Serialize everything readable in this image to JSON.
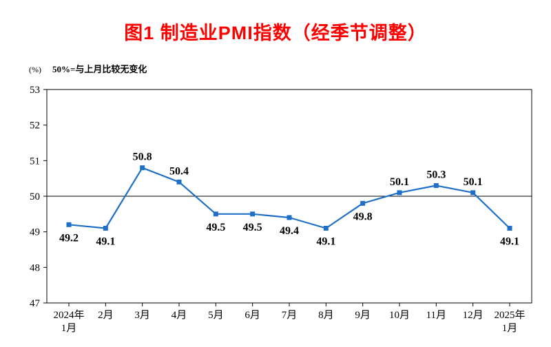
{
  "page": {
    "title": "图1  制造业PMI指数（经季节调整）",
    "unit_label": "(%)",
    "note": "50%=与上月比较无变化"
  },
  "colors": {
    "title": "#ff0000",
    "line": "#1e6fc8",
    "axis": "#000000"
  },
  "chart_data": {
    "type": "line",
    "title": "图1 制造业PMI指数（经季节调整）",
    "series_name": "制造业PMI",
    "unit": "%",
    "note": "50%=与上月比较无变化",
    "categories": [
      "2024年|1月",
      "2月",
      "3月",
      "4月",
      "5月",
      "6月",
      "7月",
      "8月",
      "9月",
      "10月",
      "11月",
      "12月",
      "2025年|1月"
    ],
    "values": [
      49.2,
      49.1,
      50.8,
      50.4,
      49.5,
      49.5,
      49.4,
      49.1,
      49.8,
      50.1,
      50.3,
      50.1,
      49.1
    ],
    "point_labels": [
      "49.2",
      "49.1",
      "50.8",
      "50.4",
      "49.5",
      "49.5",
      "49.4",
      "49.1",
      "49.8",
      "50.1",
      "50.3",
      "50.1",
      "49.1"
    ],
    "label_positions": [
      "below",
      "below",
      "above",
      "above",
      "below",
      "below",
      "below",
      "below",
      "below",
      "above",
      "above",
      "above",
      "below"
    ],
    "ylim": [
      47,
      53
    ],
    "ytick_interval": 1,
    "reference_value": 50,
    "grid": false,
    "legend_position": "none"
  }
}
